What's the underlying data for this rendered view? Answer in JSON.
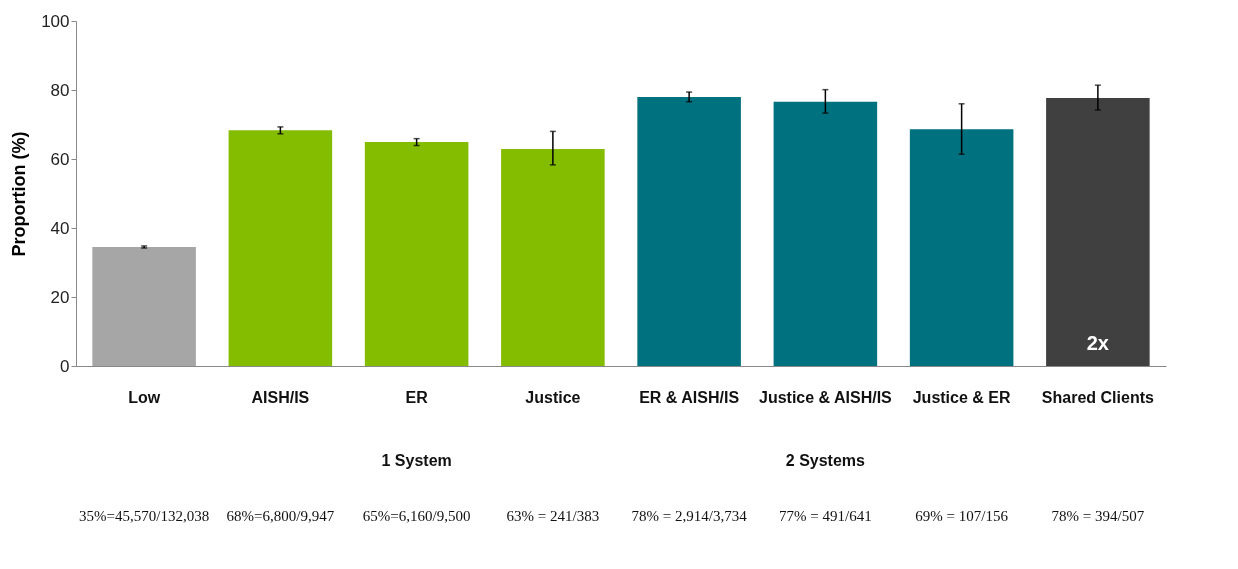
{
  "chart_data": {
    "type": "bar",
    "ylabel": "Proportion (%)",
    "categories": [
      "Low",
      "AISH/IS",
      "ER",
      "Justice",
      "ER & AISH/IS",
      "Justice & AISH/IS",
      "Justice & ER",
      "Shared Clients"
    ],
    "values": [
      34.5,
      68.3,
      64.9,
      62.9,
      78.0,
      76.6,
      68.6,
      77.7
    ],
    "colors": [
      "#a6a6a6",
      "#84bd00",
      "#84bd00",
      "#84bd00",
      "#00717e",
      "#00717e",
      "#00717e",
      "#404040"
    ],
    "errors": [
      [
        34.2,
        34.8
      ],
      [
        67.3,
        69.3
      ],
      [
        63.9,
        65.9
      ],
      [
        58.3,
        68.0
      ],
      [
        76.6,
        79.4
      ],
      [
        73.3,
        80.1
      ],
      [
        61.4,
        76.0
      ],
      [
        74.2,
        81.4
      ]
    ],
    "ylim": [
      0,
      100
    ],
    "yticks": [
      0,
      20,
      40,
      60,
      80,
      100
    ],
    "grid": false,
    "annotations": [
      "1 System",
      "2 Systems",
      "35%=45,570/132,038",
      "68%=6,800/9,947",
      "65%=6,160/9,500",
      "63% = 241/383",
      "78% = 2,914/3,734",
      "77% = 491/641",
      "69% = 107/156",
      "78% = 394/507",
      "2x"
    ]
  }
}
